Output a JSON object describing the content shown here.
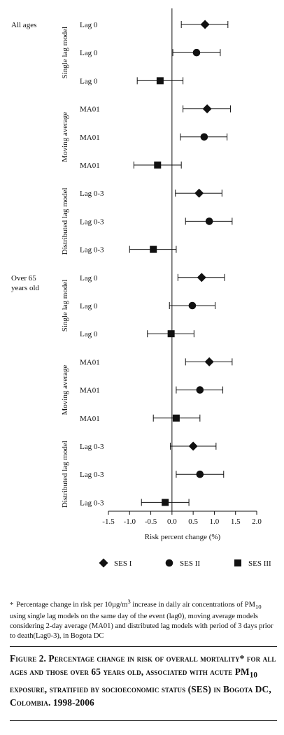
{
  "chart_data": {
    "type": "forest",
    "x_axis": {
      "label": "Risk percent change (%)",
      "range": [
        -1.5,
        2.0
      ],
      "ticks": [
        -1.5,
        -1.0,
        -0.5,
        0.0,
        0.5,
        1.0,
        1.5,
        2.0
      ],
      "tick_labels": [
        "-1.5",
        "-1.0",
        "-0.5",
        "0.0",
        "0.5",
        "1.0",
        "1.5",
        "2.0"
      ],
      "reference_line_at": 0
    },
    "legend": {
      "placement": "bottom",
      "entries": [
        {
          "label": "SES I",
          "marker": "diamond"
        },
        {
          "label": "SES II",
          "marker": "circle"
        },
        {
          "label": "SES III",
          "marker": "square"
        }
      ]
    },
    "panels": [
      {
        "label": "All ages",
        "models": [
          {
            "name": "Single lag model",
            "rows": [
              {
                "label": "Lag 0",
                "ses": "SES I",
                "estimate": 0.78,
                "ci": [
                  0.22,
                  1.32
                ]
              },
              {
                "label": "Lag 0",
                "ses": "SES II",
                "estimate": 0.58,
                "ci": [
                  0.02,
                  1.14
                ]
              },
              {
                "label": "Lag 0",
                "ses": "SES III",
                "estimate": -0.28,
                "ci": [
                  -0.82,
                  0.26
                ]
              }
            ]
          },
          {
            "name": "Moving average",
            "rows": [
              {
                "label": "MA01",
                "ses": "SES I",
                "estimate": 0.83,
                "ci": [
                  0.26,
                  1.38
                ]
              },
              {
                "label": "MA01",
                "ses": "SES II",
                "estimate": 0.76,
                "ci": [
                  0.2,
                  1.3
                ]
              },
              {
                "label": "MA01",
                "ses": "SES III",
                "estimate": -0.34,
                "ci": [
                  -0.9,
                  0.22
                ]
              }
            ]
          },
          {
            "name": "Distributed lag model",
            "rows": [
              {
                "label": "Lag 0-3",
                "ses": "SES I",
                "estimate": 0.64,
                "ci": [
                  0.08,
                  1.18
                ]
              },
              {
                "label": "Lag 0-3",
                "ses": "SES II",
                "estimate": 0.88,
                "ci": [
                  0.32,
                  1.42
                ]
              },
              {
                "label": "Lag 0-3",
                "ses": "SES III",
                "estimate": -0.44,
                "ci": [
                  -1.0,
                  0.1
                ]
              }
            ]
          }
        ]
      },
      {
        "label": "Over 65\nyears old",
        "models": [
          {
            "name": "Single lag model",
            "rows": [
              {
                "label": "Lag 0",
                "ses": "SES I",
                "estimate": 0.7,
                "ci": [
                  0.14,
                  1.24
                ]
              },
              {
                "label": "Lag 0",
                "ses": "SES II",
                "estimate": 0.48,
                "ci": [
                  -0.06,
                  1.02
                ]
              },
              {
                "label": "Lag 0",
                "ses": "SES III",
                "estimate": -0.02,
                "ci": [
                  -0.58,
                  0.52
                ]
              }
            ]
          },
          {
            "name": "Moving average",
            "rows": [
              {
                "label": "MA01",
                "ses": "SES I",
                "estimate": 0.88,
                "ci": [
                  0.32,
                  1.42
                ]
              },
              {
                "label": "MA01",
                "ses": "SES II",
                "estimate": 0.66,
                "ci": [
                  0.1,
                  1.2
                ]
              },
              {
                "label": "MA01",
                "ses": "SES III",
                "estimate": 0.1,
                "ci": [
                  -0.44,
                  0.66
                ]
              }
            ]
          },
          {
            "name": "Distributed lag model",
            "rows": [
              {
                "label": "Lag 0-3",
                "ses": "SES I",
                "estimate": 0.5,
                "ci": [
                  -0.04,
                  1.04
                ]
              },
              {
                "label": "Lag 0-3",
                "ses": "SES II",
                "estimate": 0.66,
                "ci": [
                  0.1,
                  1.22
                ]
              },
              {
                "label": "Lag 0-3",
                "ses": "SES III",
                "estimate": -0.16,
                "ci": [
                  -0.72,
                  0.4
                ]
              }
            ]
          }
        ]
      }
    ]
  },
  "footnote": {
    "star": "*",
    "text_1": "Percentage change in risk per 10µg/m",
    "sup_3": "3",
    "text_2": " increase in daily air concentrations of PM",
    "sub_10": "10",
    "text_3": " using single lag models on the same day of the event (lag0), moving average models considering 2-day average (MA01) and distributed lag models with period of 3 days prior to death(Lag0-3), in Bogota DC"
  },
  "caption": {
    "text_1": "Figure 2. Percentage change in risk of overall mortality* for all ages and those over 65 years old, associated with acute PM",
    "sub_10": "10",
    "text_2": " exposure, stratified by socioeconomic status (SES) in Bogota DC, Colombia. 1998-2006"
  }
}
